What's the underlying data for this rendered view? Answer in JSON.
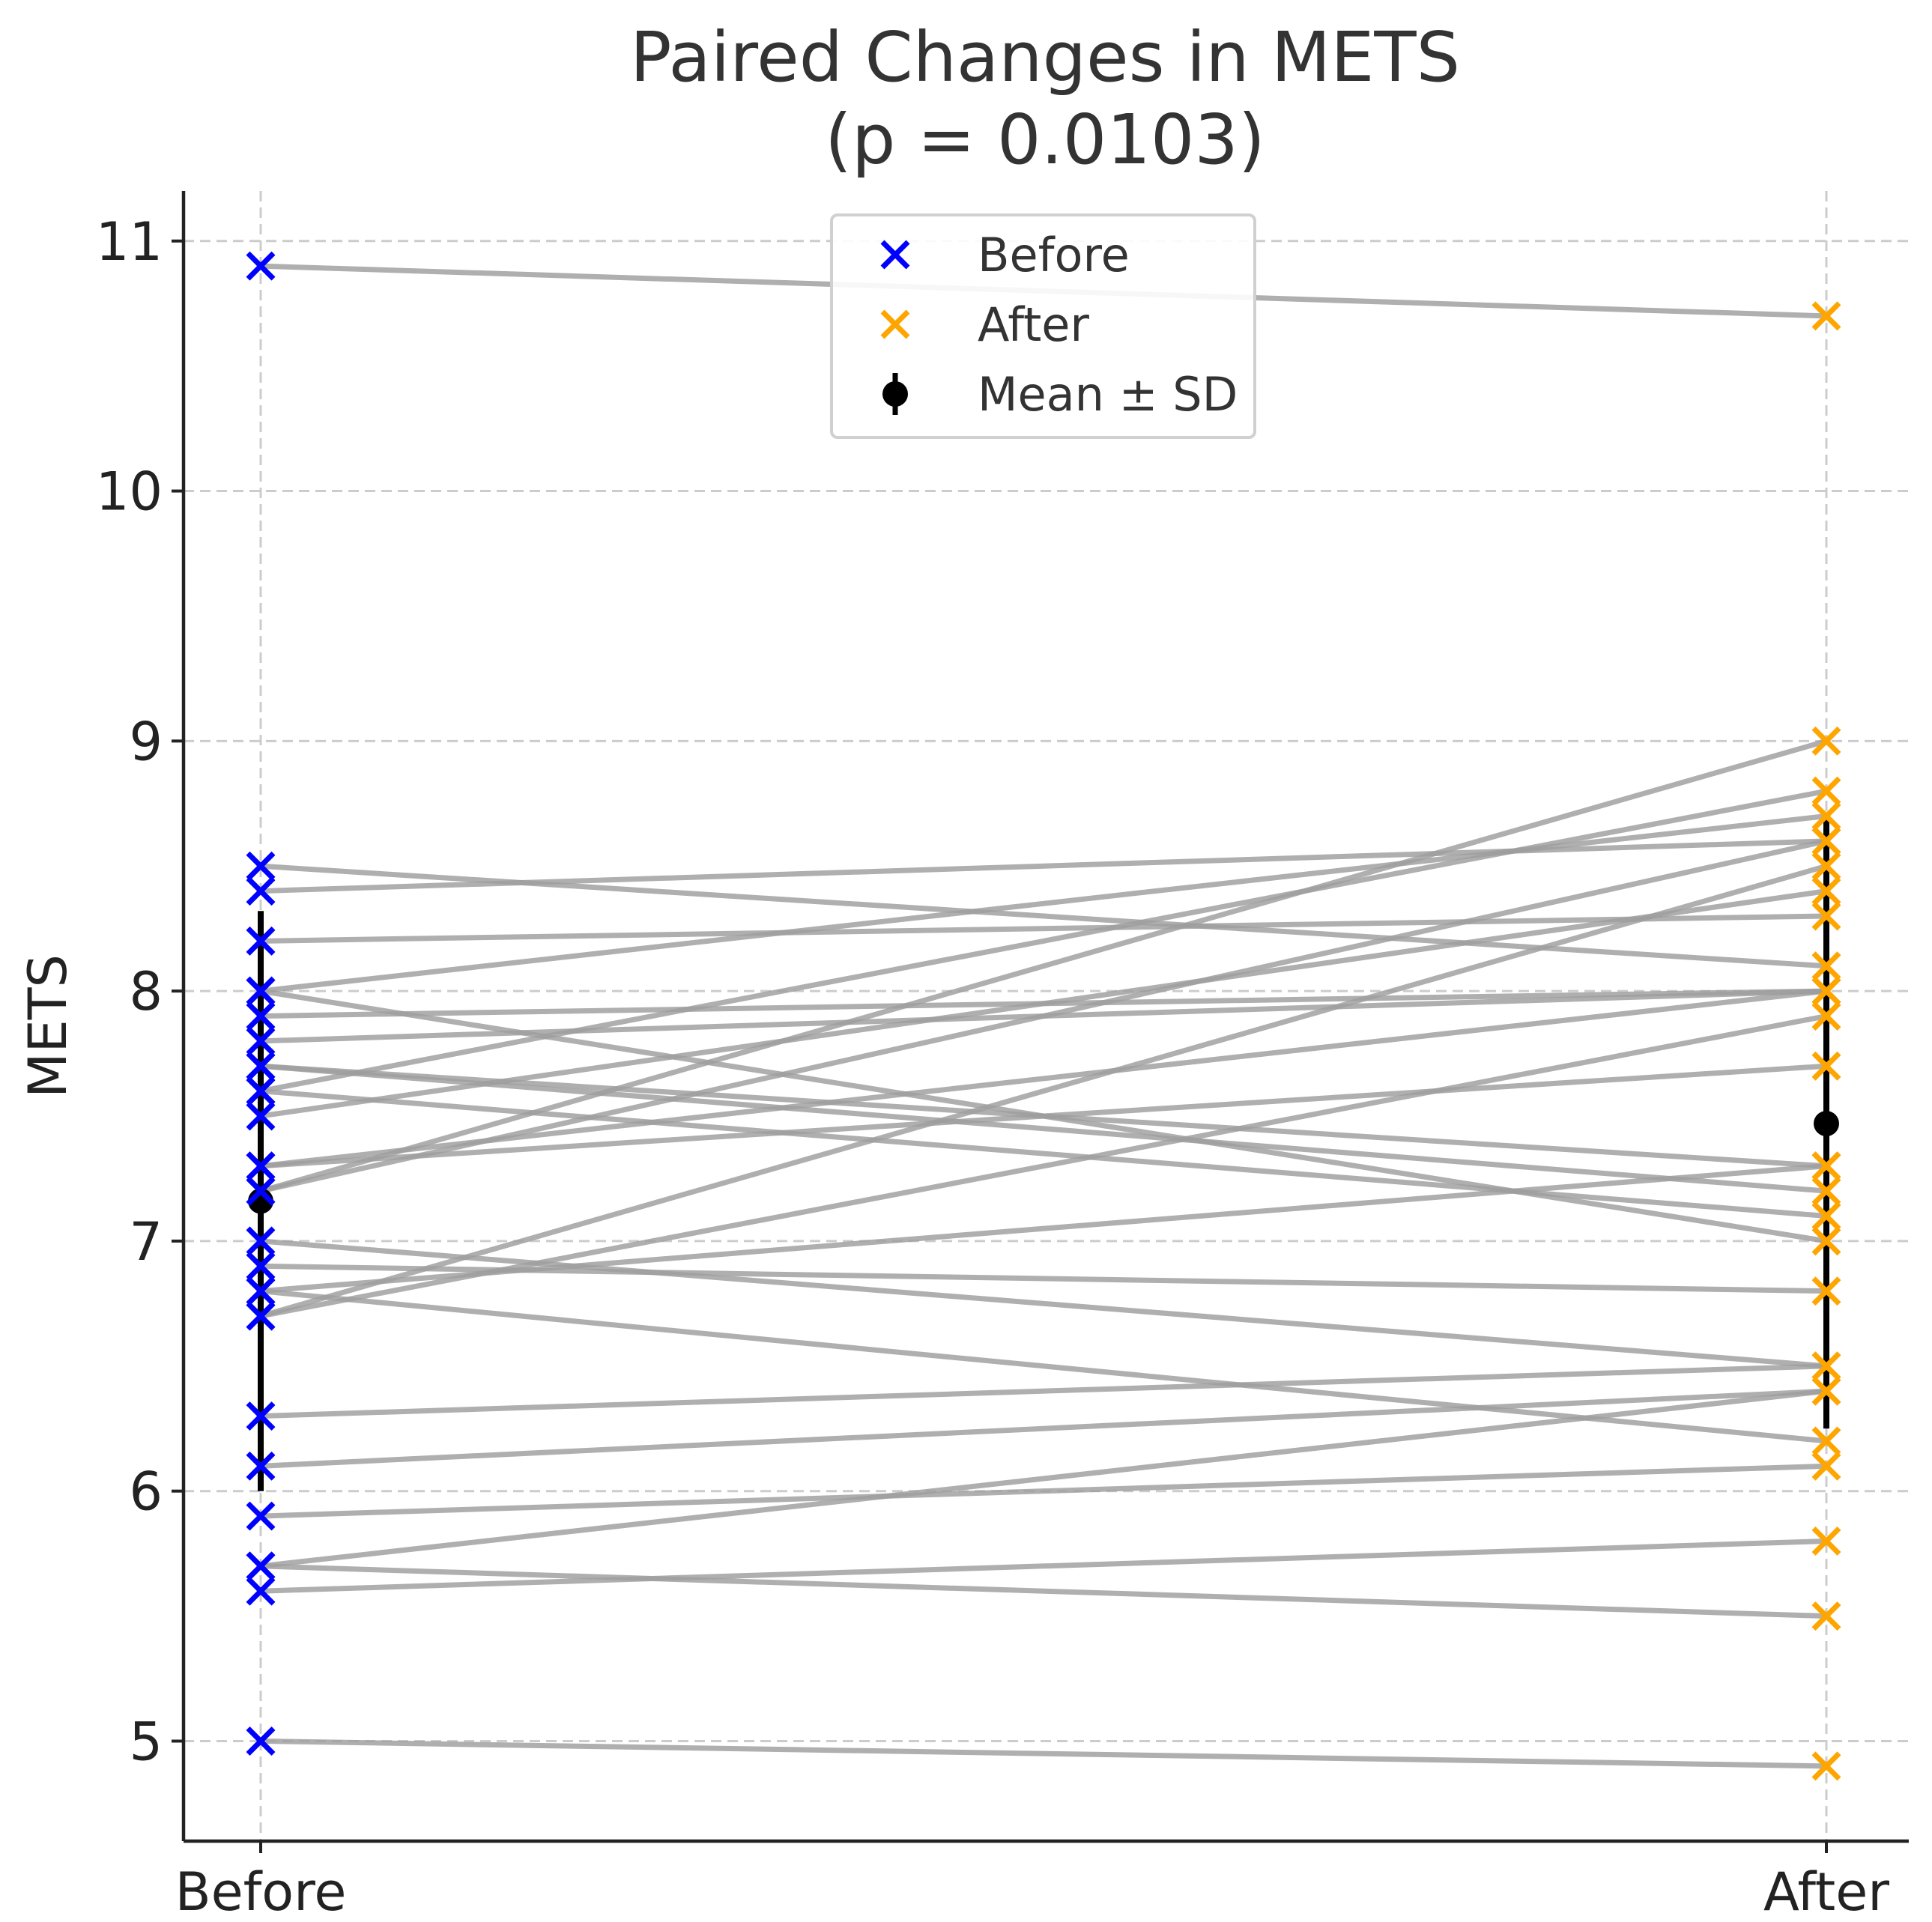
{
  "chart_data": {
    "type": "line",
    "title_line1": "Paired Changes in METS",
    "title_line2": "(p = 0.0103)",
    "xlabel": "",
    "ylabel": "METS",
    "categories": [
      "Before",
      "After"
    ],
    "ylim": [
      4.6,
      11.2
    ],
    "yticks": [
      5,
      6,
      7,
      8,
      9,
      10,
      11
    ],
    "grid": true,
    "legend_position": "upper-center",
    "legend": [
      {
        "label": "Before",
        "marker": "x",
        "color": "#0000ff"
      },
      {
        "label": "After",
        "marker": "x",
        "color": "#ffa500"
      },
      {
        "label": "Mean ± SD",
        "marker": "errorbar",
        "color": "#000000"
      }
    ],
    "colors": {
      "before": "#0000ff",
      "after": "#ffa500",
      "pair_line": "#9e9e9e",
      "mean": "#000000"
    },
    "pairs": [
      {
        "before": 10.9,
        "after": 10.7
      },
      {
        "before": 8.5,
        "after": 8.1
      },
      {
        "before": 8.4,
        "after": 8.6
      },
      {
        "before": 8.2,
        "after": 8.3
      },
      {
        "before": 8.0,
        "after": 7.0
      },
      {
        "before": 8.0,
        "after": 8.7
      },
      {
        "before": 7.9,
        "after": 8.0
      },
      {
        "before": 7.8,
        "after": 8.0
      },
      {
        "before": 7.7,
        "after": 7.2
      },
      {
        "before": 7.7,
        "after": 7.3
      },
      {
        "before": 7.6,
        "after": 8.8
      },
      {
        "before": 7.6,
        "after": 7.1
      },
      {
        "before": 7.5,
        "after": 8.4
      },
      {
        "before": 7.3,
        "after": 8.0
      },
      {
        "before": 7.2,
        "after": 9.0
      },
      {
        "before": 7.2,
        "after": 8.6
      },
      {
        "before": 7.0,
        "after": 6.5
      },
      {
        "before": 6.9,
        "after": 6.8
      },
      {
        "before": 6.8,
        "after": 7.3
      },
      {
        "before": 6.7,
        "after": 7.9
      },
      {
        "before": 6.7,
        "after": 8.5
      },
      {
        "before": 6.3,
        "after": 6.5
      },
      {
        "before": 6.1,
        "after": 6.4
      },
      {
        "before": 5.9,
        "after": 6.1
      },
      {
        "before": 5.7,
        "after": 6.4
      },
      {
        "before": 5.7,
        "after": 5.5
      },
      {
        "before": 5.6,
        "after": 5.8
      },
      {
        "before": 5.0,
        "after": 4.9
      },
      {
        "before": 7.3,
        "after": 7.7
      },
      {
        "before": 6.8,
        "after": 6.2
      }
    ],
    "mean_sd": [
      {
        "group": "Before",
        "mean": 7.16,
        "sd": 1.16
      },
      {
        "group": "After",
        "mean": 7.47,
        "sd": 1.22
      }
    ]
  }
}
